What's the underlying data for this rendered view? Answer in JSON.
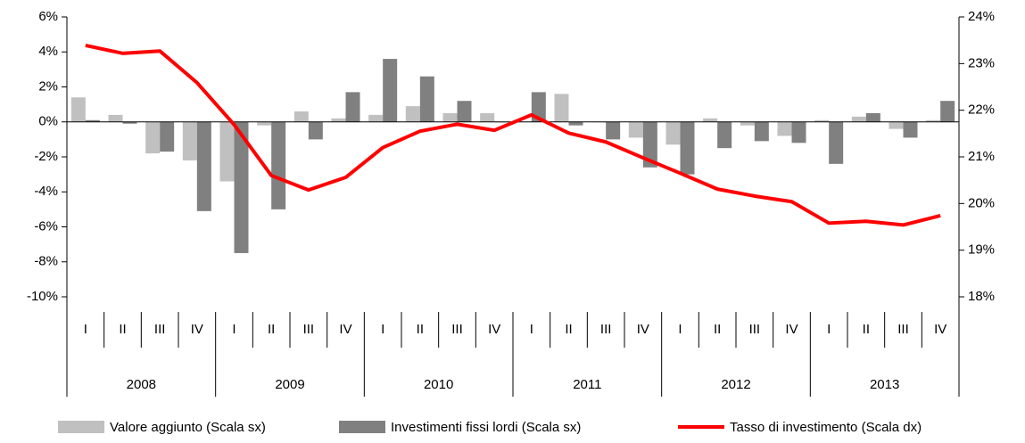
{
  "chart_data": {
    "type": "bar_line",
    "categories": [
      "I",
      "II",
      "III",
      "IV",
      "I",
      "II",
      "III",
      "IV",
      "I",
      "II",
      "III",
      "IV",
      "I",
      "II",
      "III",
      "IV",
      "I",
      "II",
      "III",
      "IV",
      "I",
      "II",
      "III",
      "IV"
    ],
    "groups": [
      "2008",
      "2009",
      "2010",
      "2011",
      "2012",
      "2013"
    ],
    "series": [
      {
        "name": "Valore aggiunto (Scala sx)",
        "type": "bar",
        "color": "#c0c0c0",
        "values": [
          1.4,
          0.4,
          -1.8,
          -2.2,
          -3.4,
          -0.2,
          0.6,
          0.2,
          0.4,
          0.9,
          0.5,
          0.5,
          0.0,
          1.6,
          0.0,
          -0.9,
          -1.3,
          0.2,
          -0.2,
          -0.8,
          0.1,
          0.3,
          -0.4,
          0.1
        ]
      },
      {
        "name": "Investimenti fissi lordi (Scala sx)",
        "type": "bar",
        "color": "#808080",
        "values": [
          0.1,
          -0.1,
          -1.7,
          -5.1,
          -7.5,
          -5.0,
          -1.0,
          1.7,
          3.6,
          2.6,
          1.2,
          0.0,
          1.7,
          -0.2,
          -1.0,
          -2.6,
          -3.0,
          -1.5,
          -1.1,
          -1.2,
          -2.4,
          0.5,
          -0.9,
          1.2
        ]
      },
      {
        "name": "Tasso di investimento (Scala dx)",
        "type": "line",
        "axis": "y2",
        "color": "#ff0000",
        "values": [
          23.39,
          23.22,
          23.27,
          22.59,
          21.69,
          20.6,
          20.29,
          20.56,
          21.2,
          21.55,
          21.7,
          21.57,
          21.9,
          21.51,
          21.32,
          20.98,
          20.65,
          20.31,
          20.16,
          20.04,
          19.58,
          19.62,
          19.54,
          19.74
        ]
      }
    ],
    "ylim": [
      -10,
      6
    ],
    "yticks": [
      {
        "value": -10,
        "label": "-10%"
      },
      {
        "value": -8,
        "label": "-8%"
      },
      {
        "value": -6,
        "label": "-6%"
      },
      {
        "value": -4,
        "label": "-4%"
      },
      {
        "value": -2,
        "label": "-2%"
      },
      {
        "value": 0,
        "label": "0%"
      },
      {
        "value": 2,
        "label": "2%"
      },
      {
        "value": 4,
        "label": "4%"
      },
      {
        "value": 6,
        "label": "6%"
      }
    ],
    "y2lim": [
      18,
      24
    ],
    "y2ticks": [
      {
        "value": 18,
        "label": "18%"
      },
      {
        "value": 19,
        "label": "19%"
      },
      {
        "value": 20,
        "label": "20%"
      },
      {
        "value": 21,
        "label": "21%"
      },
      {
        "value": 22,
        "label": "22%"
      },
      {
        "value": 23,
        "label": "23%"
      },
      {
        "value": 24,
        "label": "24%"
      }
    ]
  }
}
